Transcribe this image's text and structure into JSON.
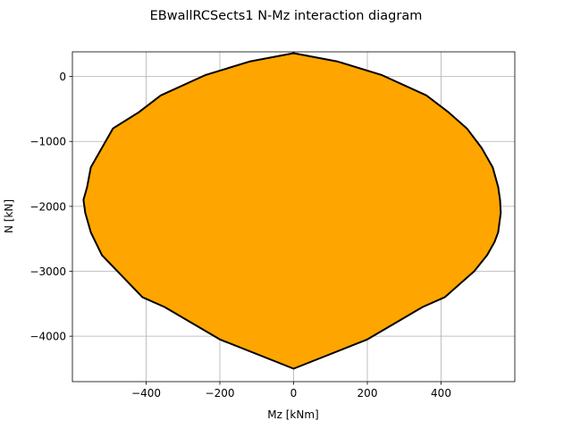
{
  "chart_data": {
    "type": "area",
    "title": "EBwallRCSects1 N-Mz interaction diagram",
    "xlabel": "Mz [kNm]",
    "ylabel": "N [kN]",
    "xlim": [
      -600,
      600
    ],
    "ylim": [
      -4700,
      380
    ],
    "xticks": [
      -400,
      -200,
      0,
      200,
      400
    ],
    "yticks": [
      0,
      -1000,
      -2000,
      -3000,
      -4000
    ],
    "x_tick_labels": [
      "−400",
      "−200",
      "0",
      "200",
      "400"
    ],
    "y_tick_labels": [
      "0",
      "−1000",
      "−2000",
      "−3000",
      "−4000"
    ],
    "grid": true,
    "fill_color": "#ffa500",
    "edge_color": "#000000",
    "series": [
      {
        "x": [
          0,
          120,
          240,
          360,
          420,
          470,
          510,
          540,
          555,
          560,
          562,
          555,
          545,
          525,
          490,
          410,
          350,
          200,
          0,
          -200,
          -350,
          -410,
          -520,
          -550,
          -565,
          -570,
          -560,
          -550,
          -520,
          -490,
          -420,
          -360,
          -240,
          -120,
          0
        ],
        "y": [
          360,
          230,
          20,
          -290,
          -550,
          -800,
          -1100,
          -1400,
          -1700,
          -1900,
          -2100,
          -2400,
          -2550,
          -2750,
          -3000,
          -3400,
          -3550,
          -4050,
          -4500,
          -4050,
          -3550,
          -3400,
          -2750,
          -2400,
          -2100,
          -1900,
          -1700,
          -1400,
          -1100,
          -800,
          -550,
          -290,
          20,
          230,
          360
        ]
      }
    ]
  }
}
